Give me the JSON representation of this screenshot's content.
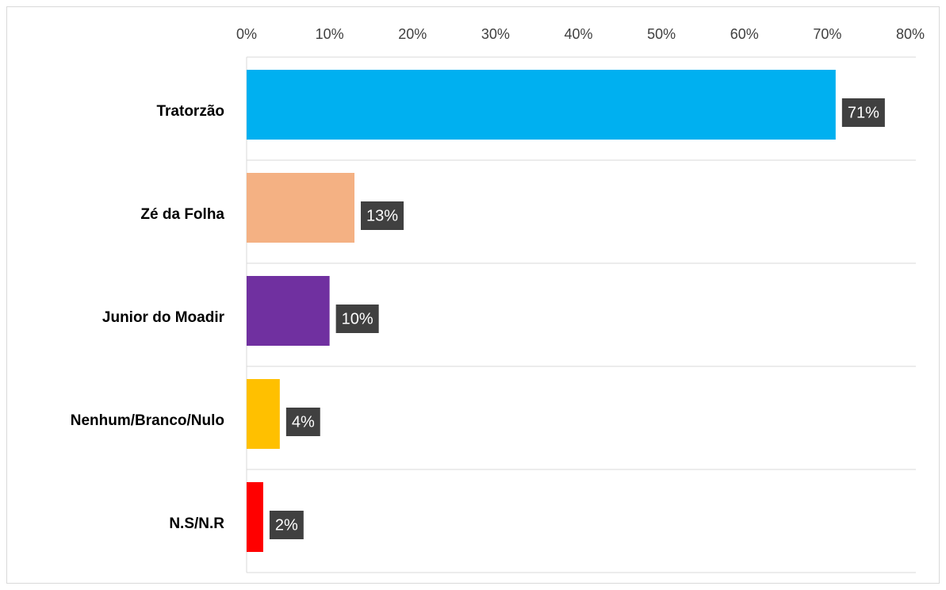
{
  "chart_data": {
    "type": "bar",
    "orientation": "horizontal",
    "categories": [
      "Tratorzão",
      "Zé da Folha",
      "Junior do Moadir",
      "Nenhum/Branco/Nulo",
      "N.S/N.R"
    ],
    "values": [
      71,
      13,
      10,
      4,
      2
    ],
    "value_labels": [
      "71%",
      "13%",
      "10%",
      "4%",
      "2%"
    ],
    "colors": [
      "#00b0f0",
      "#f4b183",
      "#7030a0",
      "#ffc000",
      "#ff0000"
    ],
    "xlim": [
      0,
      80
    ],
    "xticks": [
      {
        "value": 0,
        "label": "0%"
      },
      {
        "value": 10,
        "label": "10%"
      },
      {
        "value": 20,
        "label": "20%"
      },
      {
        "value": 30,
        "label": "30%"
      },
      {
        "value": 40,
        "label": "40%"
      },
      {
        "value": 50,
        "label": "50%"
      },
      {
        "value": 60,
        "label": "60%"
      },
      {
        "value": 70,
        "label": "70%"
      },
      {
        "value": 80,
        "label": "80%"
      }
    ]
  }
}
